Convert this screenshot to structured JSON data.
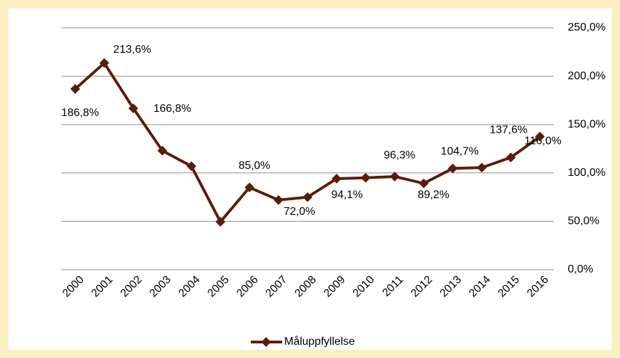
{
  "chart_data": {
    "type": "line",
    "categories": [
      "2000",
      "2001",
      "2002",
      "2003",
      "2004",
      "2005",
      "2006",
      "2007",
      "2008",
      "2009",
      "2010",
      "2011",
      "2012",
      "2013",
      "2014",
      "2015",
      "2016"
    ],
    "series": [
      {
        "name": "Måluppfyllelse",
        "color": "#5c1d08",
        "values": [
          186.8,
          213.6,
          166.8,
          123,
          107,
          49.5,
          85.0,
          72.0,
          75,
          94.1,
          95,
          96.3,
          89.2,
          104.7,
          105.5,
          116.0,
          137.6
        ],
        "value_labels": [
          "186,8%",
          "213,6%",
          "166,8%",
          null,
          null,
          null,
          "85,0%",
          "72,0%",
          null,
          "94,1%",
          null,
          "96,3%",
          "89,2%",
          "104,7%",
          null,
          "116,0%",
          "137,6%"
        ]
      }
    ],
    "ylim": [
      0,
      250
    ],
    "yticks": [
      {
        "value": 0,
        "label": "0,0%"
      },
      {
        "value": 50,
        "label": "50,0%"
      },
      {
        "value": 100,
        "label": "100,0%"
      },
      {
        "value": 150,
        "label": "150,0%"
      },
      {
        "value": 200,
        "label": "200,0%"
      },
      {
        "value": 250,
        "label": "250,0%"
      }
    ],
    "grid": true
  }
}
